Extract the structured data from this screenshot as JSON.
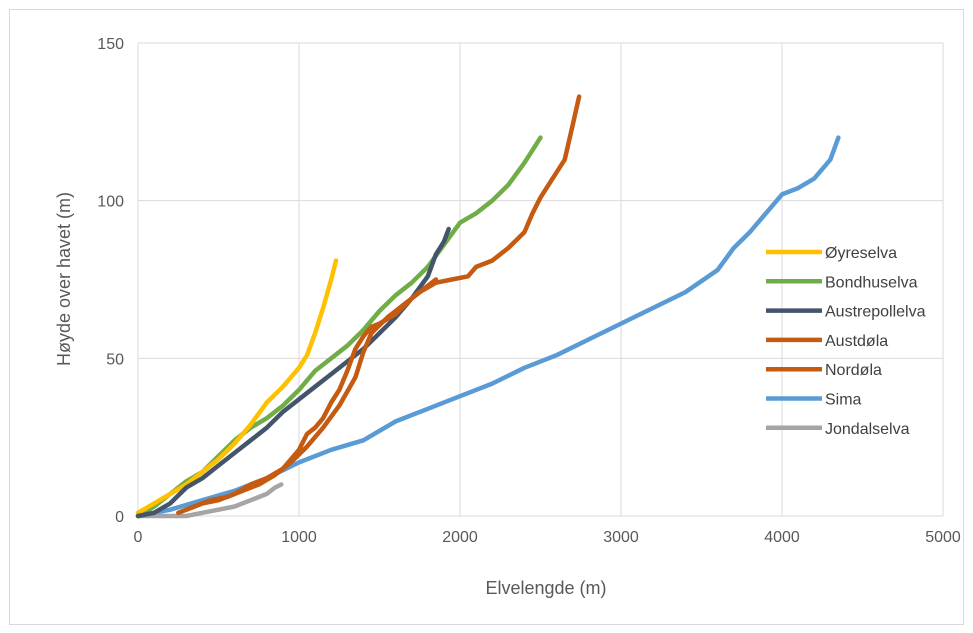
{
  "chart_data": {
    "type": "line",
    "title": "",
    "xlabel": "Elvelengde (m)",
    "ylabel": "Høyde over havet (m)",
    "xlim": [
      0,
      5000
    ],
    "ylim": [
      0,
      150
    ],
    "xticks": [
      "0",
      "1000",
      "2000",
      "3000",
      "4000",
      "5000"
    ],
    "yticks": [
      "0",
      "50",
      "100",
      "150"
    ],
    "grid": true,
    "legend_position": "right",
    "series": [
      {
        "name": "Øyreselva",
        "color": "#FFC000",
        "points": [
          [
            0,
            1
          ],
          [
            100,
            4
          ],
          [
            200,
            7
          ],
          [
            300,
            10
          ],
          [
            400,
            14
          ],
          [
            500,
            18
          ],
          [
            600,
            23
          ],
          [
            700,
            29
          ],
          [
            800,
            36
          ],
          [
            900,
            41
          ],
          [
            1000,
            47
          ],
          [
            1050,
            51
          ],
          [
            1100,
            58
          ],
          [
            1150,
            66
          ],
          [
            1200,
            75
          ],
          [
            1230,
            81
          ]
        ]
      },
      {
        "name": "Bondhuselva",
        "color": "#70AD47",
        "points": [
          [
            0,
            0
          ],
          [
            100,
            3
          ],
          [
            200,
            7
          ],
          [
            300,
            11
          ],
          [
            400,
            14
          ],
          [
            500,
            19
          ],
          [
            600,
            24
          ],
          [
            700,
            28
          ],
          [
            800,
            31
          ],
          [
            900,
            35
          ],
          [
            1000,
            40
          ],
          [
            1100,
            46
          ],
          [
            1200,
            50
          ],
          [
            1300,
            54
          ],
          [
            1400,
            59
          ],
          [
            1500,
            65
          ],
          [
            1600,
            70
          ],
          [
            1700,
            74
          ],
          [
            1800,
            79
          ],
          [
            1900,
            86
          ],
          [
            2000,
            93
          ],
          [
            2100,
            96
          ],
          [
            2200,
            100
          ],
          [
            2300,
            105
          ],
          [
            2400,
            112
          ],
          [
            2450,
            116
          ],
          [
            2500,
            120
          ]
        ]
      },
      {
        "name": "Austrepollelva",
        "color": "#44546A",
        "points": [
          [
            0,
            0
          ],
          [
            100,
            1
          ],
          [
            200,
            4
          ],
          [
            300,
            9
          ],
          [
            400,
            12
          ],
          [
            500,
            16
          ],
          [
            600,
            20
          ],
          [
            700,
            24
          ],
          [
            800,
            28
          ],
          [
            900,
            33
          ],
          [
            1000,
            37
          ],
          [
            1100,
            41
          ],
          [
            1200,
            45
          ],
          [
            1300,
            49
          ],
          [
            1400,
            53
          ],
          [
            1500,
            58
          ],
          [
            1600,
            63
          ],
          [
            1700,
            69
          ],
          [
            1800,
            76
          ],
          [
            1850,
            83
          ],
          [
            1900,
            87
          ],
          [
            1930,
            91
          ]
        ]
      },
      {
        "name": "Austdøla",
        "color": "#C55A11",
        "points": [
          [
            300,
            2
          ],
          [
            400,
            4
          ],
          [
            500,
            5
          ],
          [
            600,
            7
          ],
          [
            700,
            10
          ],
          [
            800,
            12
          ],
          [
            900,
            15
          ],
          [
            1000,
            21
          ],
          [
            1050,
            26
          ],
          [
            1100,
            28
          ],
          [
            1150,
            31
          ],
          [
            1200,
            36
          ],
          [
            1250,
            40
          ],
          [
            1300,
            46
          ],
          [
            1350,
            53
          ],
          [
            1400,
            57
          ],
          [
            1450,
            60
          ],
          [
            1500,
            61
          ],
          [
            1600,
            64
          ],
          [
            1700,
            69
          ],
          [
            1800,
            73
          ],
          [
            1850,
            75
          ]
        ]
      },
      {
        "name": "Nordøla",
        "color": "#C55A11",
        "points": [
          [
            250,
            1
          ],
          [
            350,
            3
          ],
          [
            450,
            5
          ],
          [
            550,
            6
          ],
          [
            650,
            8
          ],
          [
            750,
            10
          ],
          [
            850,
            13
          ],
          [
            950,
            17
          ],
          [
            1050,
            22
          ],
          [
            1150,
            28
          ],
          [
            1250,
            35
          ],
          [
            1350,
            44
          ],
          [
            1400,
            52
          ],
          [
            1450,
            58
          ],
          [
            1550,
            63
          ],
          [
            1650,
            67
          ],
          [
            1750,
            71
          ],
          [
            1850,
            74
          ],
          [
            1950,
            75
          ],
          [
            2050,
            76
          ],
          [
            2100,
            79
          ],
          [
            2200,
            81
          ],
          [
            2300,
            85
          ],
          [
            2400,
            90
          ],
          [
            2450,
            96
          ],
          [
            2500,
            101
          ],
          [
            2550,
            105
          ],
          [
            2600,
            109
          ],
          [
            2650,
            113
          ],
          [
            2700,
            124
          ],
          [
            2740,
            133
          ]
        ]
      },
      {
        "name": "Sima",
        "color": "#5B9BD5",
        "points": [
          [
            0,
            0
          ],
          [
            200,
            2
          ],
          [
            400,
            5
          ],
          [
            600,
            8
          ],
          [
            800,
            12
          ],
          [
            1000,
            17
          ],
          [
            1200,
            21
          ],
          [
            1400,
            24
          ],
          [
            1600,
            30
          ],
          [
            1800,
            34
          ],
          [
            2000,
            38
          ],
          [
            2200,
            42
          ],
          [
            2400,
            47
          ],
          [
            2600,
            51
          ],
          [
            2800,
            56
          ],
          [
            3000,
            61
          ],
          [
            3200,
            66
          ],
          [
            3400,
            71
          ],
          [
            3600,
            78
          ],
          [
            3700,
            85
          ],
          [
            3800,
            90
          ],
          [
            3900,
            96
          ],
          [
            4000,
            102
          ],
          [
            4100,
            104
          ],
          [
            4200,
            107
          ],
          [
            4300,
            113
          ],
          [
            4350,
            120
          ]
        ]
      },
      {
        "name": "Jondalselva",
        "color": "#A5A5A5",
        "points": [
          [
            0,
            0
          ],
          [
            150,
            0
          ],
          [
            300,
            0
          ],
          [
            400,
            1
          ],
          [
            500,
            2
          ],
          [
            600,
            3
          ],
          [
            700,
            5
          ],
          [
            800,
            7
          ],
          [
            850,
            9
          ],
          [
            890,
            10
          ]
        ]
      }
    ]
  }
}
